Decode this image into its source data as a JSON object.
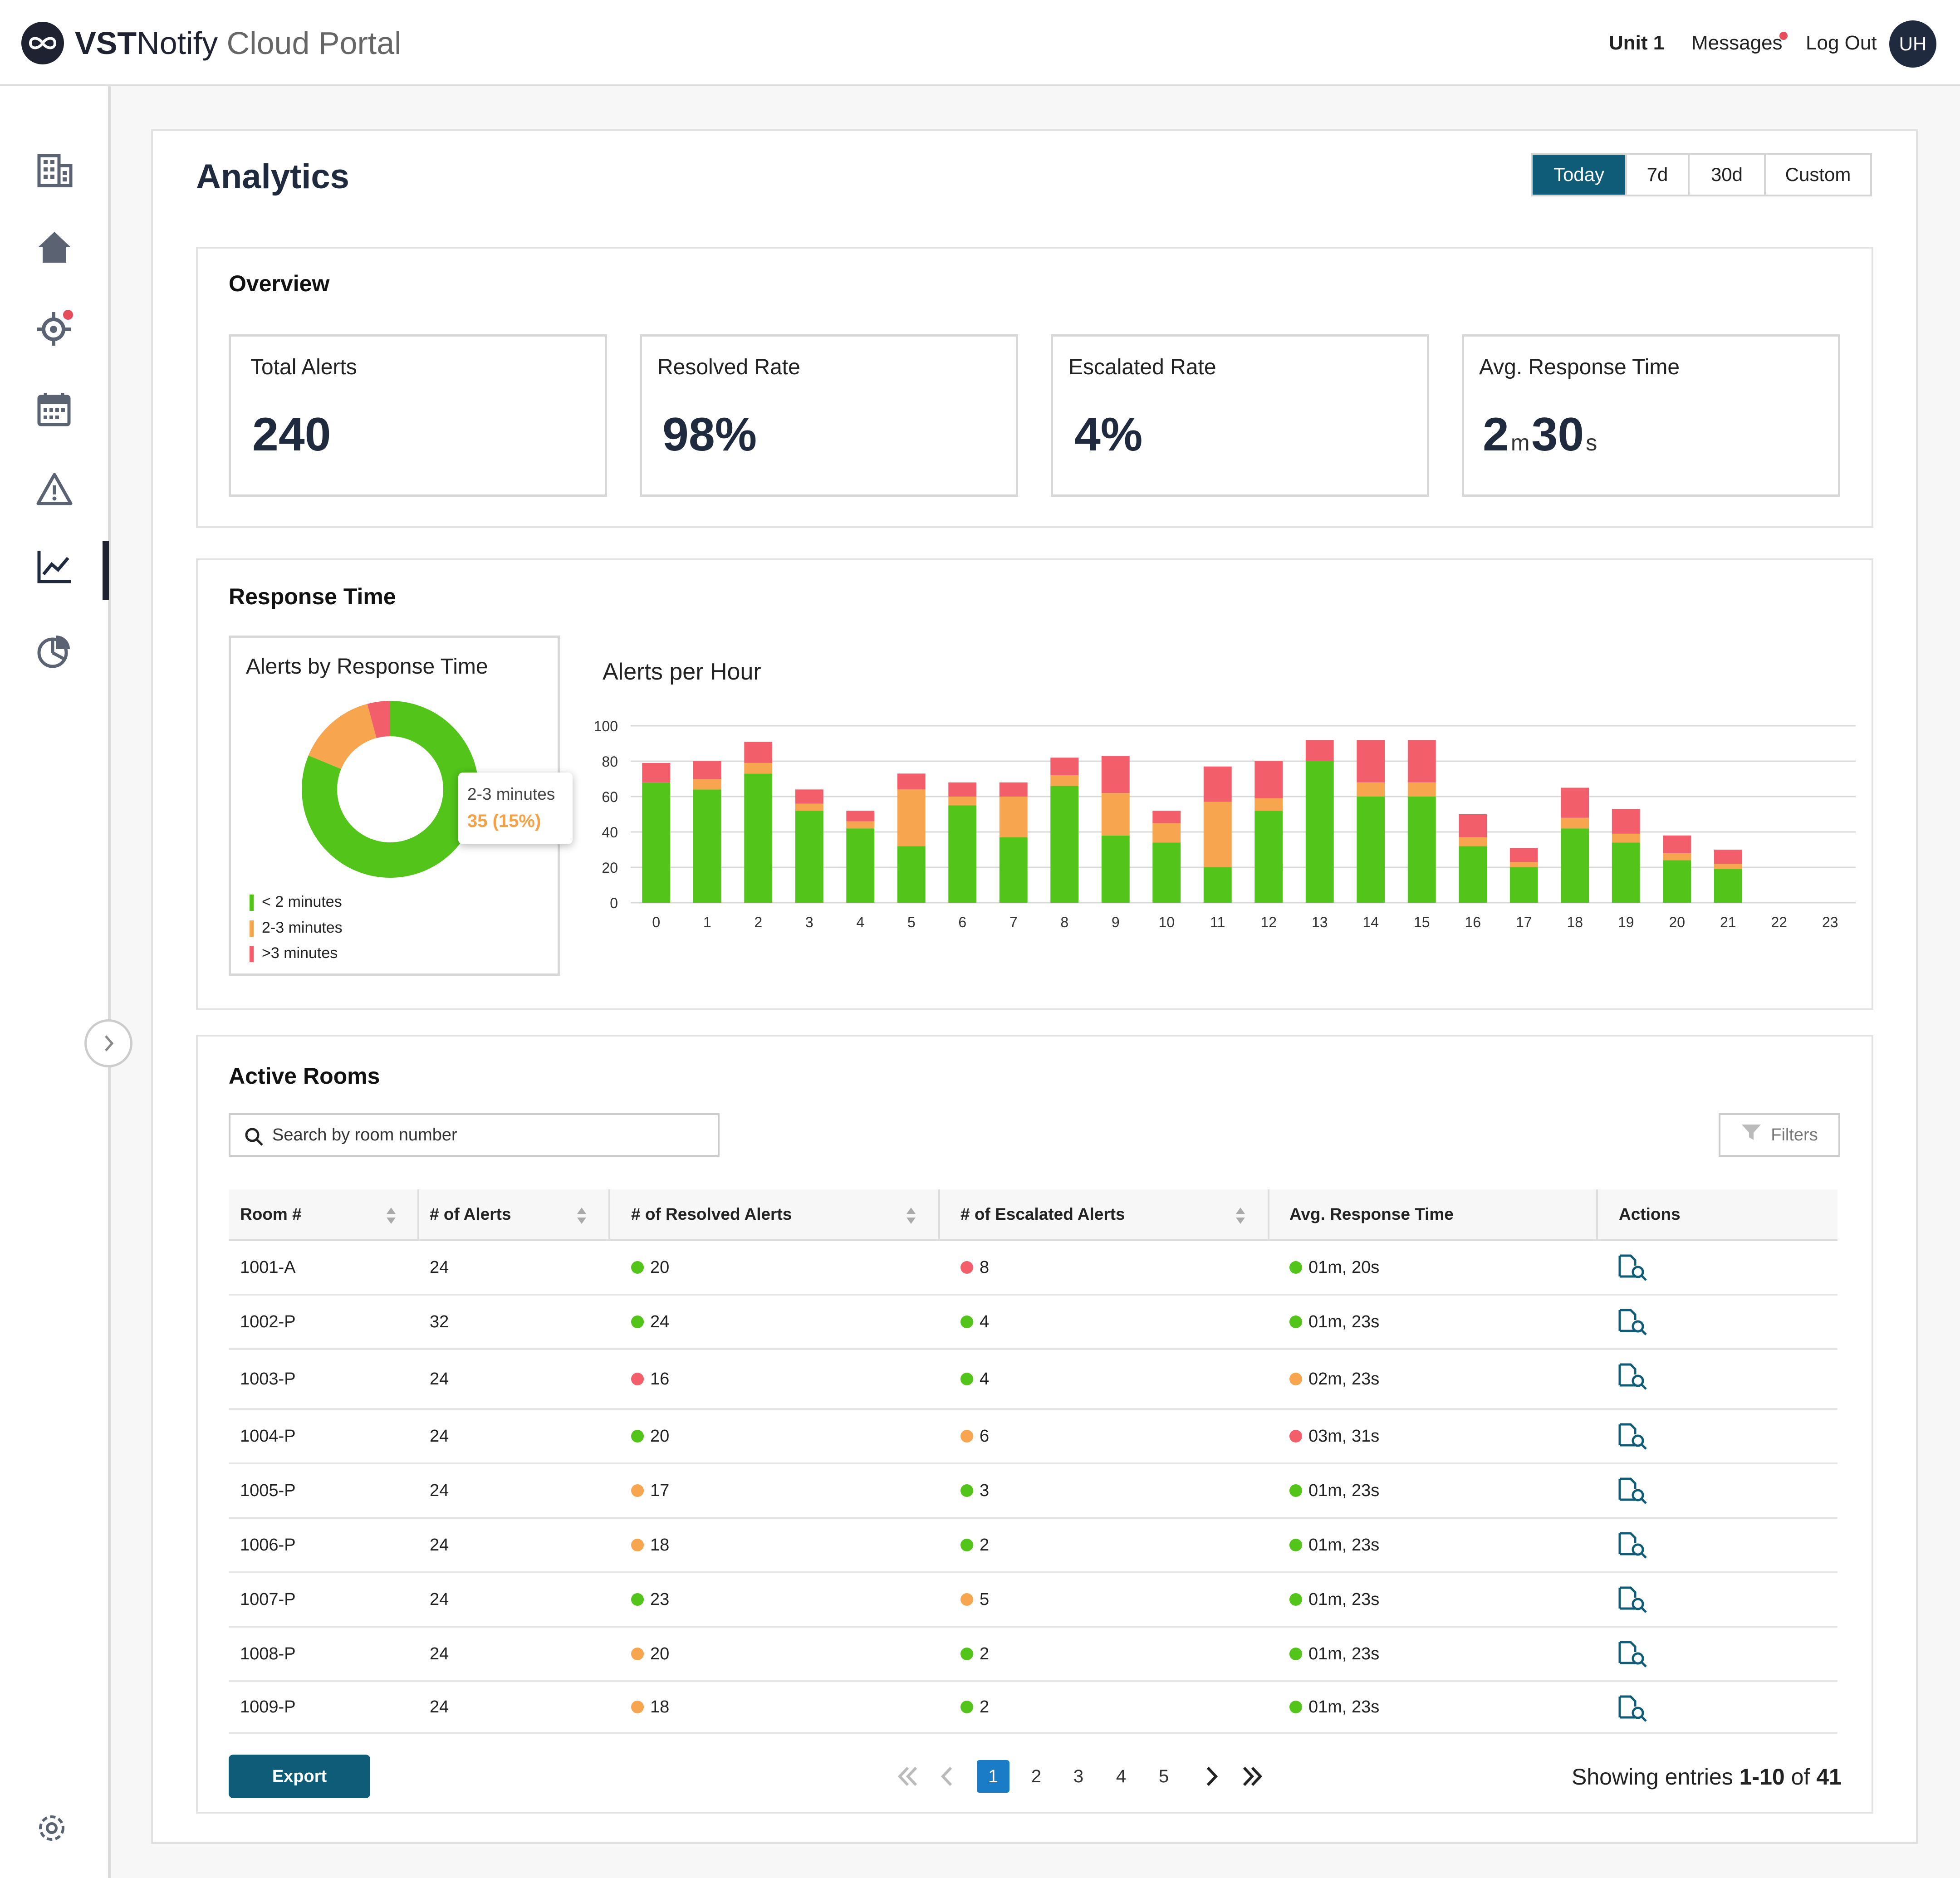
{
  "header": {
    "brand_strong": "VST",
    "brand_name": "Notify",
    "brand_suffix": " Cloud Portal",
    "unit_label": "Unit 1",
    "messages_label": "Messages",
    "logout_label": "Log Out",
    "avatar_initials": "UH"
  },
  "sidebar": {
    "icons": [
      "building-icon",
      "home-icon",
      "location-alert-icon",
      "calendar-icon",
      "warning-icon",
      "analytics-icon",
      "pie-chart-icon",
      "settings-icon"
    ],
    "active_item": "analytics-icon"
  },
  "page": {
    "title": "Analytics",
    "ranges": [
      "Today",
      "7d",
      "30d",
      "Custom"
    ],
    "active_range": "Today"
  },
  "overview": {
    "title": "Overview",
    "kpis": [
      {
        "label": "Total Alerts",
        "value": "240"
      },
      {
        "label": "Resolved Rate",
        "value": "98%"
      },
      {
        "label": "Escalated Rate",
        "value": "4%"
      },
      {
        "label": "Avg. Response Time",
        "minutes": "2",
        "minutes_unit": "m",
        "seconds": "30",
        "seconds_unit": "s"
      }
    ]
  },
  "response_time": {
    "title": "Response Time",
    "donut": {
      "title": "Alerts by Response Time",
      "legend": [
        "< 2 minutes",
        "2-3 minutes",
        ">3 minutes"
      ],
      "tooltip_label": "2-3 minutes",
      "tooltip_value": "35 (15%)"
    },
    "bar_title": "Alerts per Hour"
  },
  "colors": {
    "green": "#52c41a",
    "orange": "#f7a54f",
    "red": "#f25f6b",
    "accent": "#0e5c78",
    "page_active": "#1a7cc6"
  },
  "chart_data": [
    {
      "type": "pie",
      "title": "Alerts by Response Time",
      "categories": [
        "< 2 minutes",
        "2-3 minutes",
        ">3 minutes"
      ],
      "values": [
        195,
        35,
        10
      ]
    },
    {
      "type": "bar",
      "title": "Alerts per Hour",
      "stacked": true,
      "categories": [
        "0",
        "1",
        "2",
        "3",
        "4",
        "5",
        "6",
        "7",
        "8",
        "9",
        "10",
        "11",
        "12",
        "13",
        "14",
        "15",
        "16",
        "17",
        "18",
        "19",
        "20",
        "21",
        "22",
        "23"
      ],
      "ylim": [
        0,
        100
      ],
      "yticks": [
        0,
        20,
        40,
        60,
        80,
        100
      ],
      "grid": true,
      "series": [
        {
          "name": "< 2 minutes",
          "values": [
            68,
            64,
            73,
            52,
            42,
            32,
            55,
            37,
            66,
            38,
            34,
            20,
            52,
            80,
            60,
            60,
            32,
            20,
            42,
            34,
            24,
            19,
            0,
            0
          ]
        },
        {
          "name": "2-3 minutes",
          "values": [
            0,
            6,
            6,
            4,
            4,
            32,
            5,
            23,
            6,
            24,
            11,
            37,
            7,
            0,
            8,
            8,
            5,
            3,
            6,
            5,
            4,
            3,
            0,
            0
          ]
        },
        {
          "name": ">3 minutes",
          "values": [
            11,
            10,
            12,
            8,
            6,
            9,
            8,
            8,
            10,
            21,
            7,
            20,
            21,
            12,
            24,
            24,
            13,
            8,
            17,
            14,
            10,
            8,
            0,
            0
          ]
        }
      ]
    }
  ],
  "active_rooms": {
    "title": "Active Rooms",
    "search_placeholder": "Search by room number",
    "filters_label": "Filters",
    "columns": [
      "Room #",
      "# of Alerts",
      "# of Resolved Alerts",
      "# of Escalated Alerts",
      "Avg. Response Time",
      "Actions"
    ],
    "rows": [
      {
        "room": "1001-A",
        "alerts": "24",
        "resolved": "20",
        "resolved_status": "green",
        "escalated": "8",
        "escalated_status": "red",
        "avg": "01m, 20s",
        "avg_status": "green"
      },
      {
        "room": "1002-P",
        "alerts": "32",
        "resolved": "24",
        "resolved_status": "green",
        "escalated": "4",
        "escalated_status": "green",
        "avg": "01m, 23s",
        "avg_status": "green"
      },
      {
        "room": "1003-P",
        "alerts": "24",
        "resolved": "16",
        "resolved_status": "red",
        "escalated": "4",
        "escalated_status": "green",
        "avg": "02m, 23s",
        "avg_status": "orange"
      },
      {
        "room": "1004-P",
        "alerts": "24",
        "resolved": "20",
        "resolved_status": "green",
        "escalated": "6",
        "escalated_status": "orange",
        "avg": "03m, 31s",
        "avg_status": "red"
      },
      {
        "room": "1005-P",
        "alerts": "24",
        "resolved": "17",
        "resolved_status": "orange",
        "escalated": "3",
        "escalated_status": "green",
        "avg": "01m, 23s",
        "avg_status": "green"
      },
      {
        "room": "1006-P",
        "alerts": "24",
        "resolved": "18",
        "resolved_status": "orange",
        "escalated": "2",
        "escalated_status": "green",
        "avg": "01m, 23s",
        "avg_status": "green"
      },
      {
        "room": "1007-P",
        "alerts": "24",
        "resolved": "23",
        "resolved_status": "green",
        "escalated": "5",
        "escalated_status": "orange",
        "avg": "01m, 23s",
        "avg_status": "green"
      },
      {
        "room": "1008-P",
        "alerts": "24",
        "resolved": "20",
        "resolved_status": "orange",
        "escalated": "2",
        "escalated_status": "green",
        "avg": "01m, 23s",
        "avg_status": "green"
      },
      {
        "room": "1009-P",
        "alerts": "24",
        "resolved": "18",
        "resolved_status": "orange",
        "escalated": "2",
        "escalated_status": "green",
        "avg": "01m, 23s",
        "avg_status": "green"
      }
    ],
    "export_label": "Export",
    "pages": [
      "1",
      "2",
      "3",
      "4",
      "5"
    ],
    "current_page": "1",
    "entries_prefix": "Showing entries ",
    "entries_range": "1-10",
    "entries_middle": " of ",
    "entries_total": "41"
  }
}
